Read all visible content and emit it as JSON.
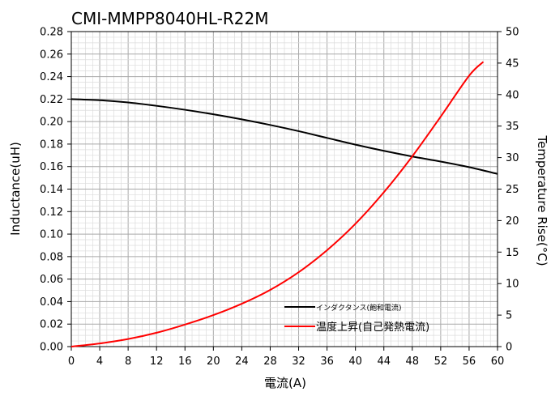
{
  "chart_data": {
    "type": "line",
    "title": "CMI-MMPP8040HL-R22M",
    "xlabel": "電流(A)",
    "ylabel_left": "Inductance(uH)",
    "ylabel_right": "Temperature Rise(°C)",
    "xlim": [
      0,
      60
    ],
    "ylim_left": [
      0,
      0.28
    ],
    "ylim_right": [
      0,
      50
    ],
    "x_ticks": [
      "0",
      "4",
      "8",
      "12",
      "16",
      "20",
      "24",
      "28",
      "32",
      "36",
      "40",
      "44",
      "48",
      "52",
      "56",
      "60"
    ],
    "y_left_ticks": [
      "0.00",
      "0.02",
      "0.04",
      "0.06",
      "0.08",
      "0.10",
      "0.12",
      "0.14",
      "0.16",
      "0.18",
      "0.20",
      "0.22",
      "0.24",
      "0.26",
      "0.28"
    ],
    "y_right_ticks": [
      "0",
      "5",
      "10",
      "15",
      "20",
      "25",
      "30",
      "35",
      "40",
      "45",
      "50"
    ],
    "grid": true,
    "legend_position": "bottom-right",
    "series": [
      {
        "name": "インダクタンス(飽和電流)",
        "axis": "left",
        "color": "#000000",
        "x": [
          0,
          4,
          8,
          12,
          16,
          20,
          24,
          28,
          32,
          36,
          40,
          44,
          48,
          52,
          56,
          60
        ],
        "values": [
          0.22,
          0.219,
          0.217,
          0.214,
          0.2105,
          0.2065,
          0.202,
          0.197,
          0.1915,
          0.1855,
          0.1795,
          0.174,
          0.169,
          0.1645,
          0.1595,
          0.1535
        ]
      },
      {
        "name": "温度上昇(自己発熱電流)",
        "axis": "right",
        "color": "#ff0000",
        "x": [
          0,
          4,
          8,
          12,
          16,
          20,
          24,
          28,
          32,
          36,
          40,
          44,
          48,
          52,
          56,
          58
        ],
        "values": [
          0,
          0.5,
          1.2,
          2.2,
          3.5,
          5.0,
          6.8,
          9.0,
          11.8,
          15.3,
          19.5,
          24.5,
          30.2,
          36.5,
          43.0,
          45.2
        ]
      }
    ]
  }
}
